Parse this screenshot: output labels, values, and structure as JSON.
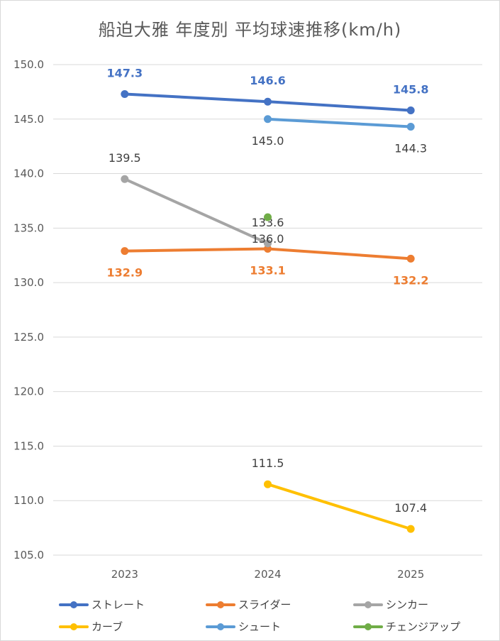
{
  "chart_data": {
    "type": "line",
    "title": "船迫大雅  年度別 平均球速推移(km/h)",
    "xlabel": "",
    "ylabel": "",
    "categories": [
      "2023",
      "2024",
      "2025"
    ],
    "ylim": [
      105,
      150
    ],
    "yticks": [
      "150.0",
      "145.0",
      "140.0",
      "135.0",
      "130.0",
      "125.0",
      "120.0",
      "115.0",
      "110.0",
      "105.0"
    ],
    "grid": true,
    "legend_position": "bottom",
    "series": [
      {
        "name": "ストレート",
        "color": "#4472C4",
        "values": [
          147.3,
          146.6,
          145.8
        ],
        "labels": [
          "147.3",
          "146.6",
          "145.8"
        ],
        "label_pos": "above",
        "label_color": "#4472C4",
        "label_bold": true
      },
      {
        "name": "スライダー",
        "color": "#ED7D31",
        "values": [
          132.9,
          133.1,
          132.2
        ],
        "labels": [
          "132.9",
          "133.1",
          "132.2"
        ],
        "label_pos": "below",
        "label_color": "#ED7D31",
        "label_bold": true
      },
      {
        "name": "シンカー",
        "color": "#A5A5A5",
        "values": [
          139.5,
          133.6,
          null
        ],
        "labels": [
          "139.5",
          "133.6",
          ""
        ],
        "label_pos": "above",
        "label_color": "#404040",
        "label_bold": false
      },
      {
        "name": "カーブ",
        "color": "#FFC000",
        "values": [
          null,
          111.5,
          107.4
        ],
        "labels": [
          "",
          "111.5",
          "107.4"
        ],
        "label_pos": "above",
        "label_color": "#404040",
        "label_bold": false
      },
      {
        "name": "シュート",
        "color": "#5B9BD5",
        "values": [
          null,
          145.0,
          144.3
        ],
        "labels": [
          "",
          "145.0",
          "144.3"
        ],
        "label_pos": "below",
        "label_color": "#404040",
        "label_bold": false
      },
      {
        "name": "チェンジアップ",
        "color": "#70AD47",
        "values": [
          null,
          136.0,
          null
        ],
        "labels": [
          "",
          "136.0",
          ""
        ],
        "label_pos": "below",
        "label_color": "#404040",
        "label_bold": false
      }
    ]
  }
}
